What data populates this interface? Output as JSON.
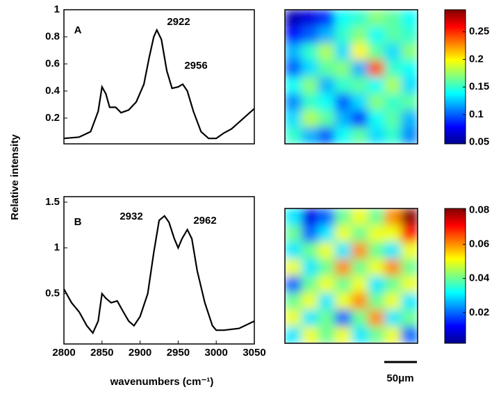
{
  "figure": {
    "ylabel": "Relative intensity",
    "xlabel": "wavenumbers (cm⁻¹)",
    "scale_bar_label": "50μm"
  },
  "chart_data": [
    {
      "type": "line",
      "color": "#000000",
      "annotations": [
        "A",
        "2922",
        "2956"
      ],
      "x": [
        2800,
        2820,
        2835,
        2845,
        2850,
        2855,
        2860,
        2868,
        2875,
        2885,
        2895,
        2905,
        2912,
        2918,
        2922,
        2928,
        2935,
        2942,
        2950,
        2956,
        2962,
        2970,
        2980,
        2990,
        3000,
        3010,
        3020,
        3030,
        3040,
        3050
      ],
      "values": [
        0.05,
        0.06,
        0.1,
        0.25,
        0.43,
        0.38,
        0.28,
        0.28,
        0.24,
        0.26,
        0.32,
        0.45,
        0.65,
        0.8,
        0.85,
        0.78,
        0.55,
        0.42,
        0.43,
        0.45,
        0.4,
        0.25,
        0.1,
        0.05,
        0.05,
        0.09,
        0.12,
        0.17,
        0.22,
        0.27
      ],
      "xlim": [
        2800,
        3050
      ],
      "ylim": [
        0.01,
        1
      ],
      "yticks": [
        0.2,
        0.4,
        0.6,
        0.8,
        1
      ]
    },
    {
      "type": "heatmap",
      "colormap": "jet",
      "clim": [
        0.047,
        0.29
      ],
      "cticks": [
        0.05,
        0.1,
        0.15,
        0.2,
        0.25
      ],
      "z": [
        [
          0.06,
          0.07,
          0.09,
          0.14,
          0.15,
          0.17,
          0.16,
          0.14
        ],
        [
          0.08,
          0.1,
          0.12,
          0.15,
          0.17,
          0.14,
          0.16,
          0.15
        ],
        [
          0.12,
          0.15,
          0.18,
          0.13,
          0.2,
          0.16,
          0.13,
          0.17
        ],
        [
          0.1,
          0.13,
          0.16,
          0.17,
          0.12,
          0.24,
          0.15,
          0.14
        ],
        [
          0.14,
          0.17,
          0.12,
          0.15,
          0.16,
          0.14,
          0.18,
          0.13
        ],
        [
          0.11,
          0.15,
          0.14,
          0.1,
          0.13,
          0.17,
          0.15,
          0.16
        ],
        [
          0.13,
          0.18,
          0.16,
          0.12,
          0.09,
          0.14,
          0.16,
          0.12
        ],
        [
          0.15,
          0.12,
          0.1,
          0.14,
          0.16,
          0.13,
          0.15,
          0.11
        ]
      ]
    },
    {
      "type": "line",
      "color": "#000000",
      "annotations": [
        "B",
        "2932",
        "2962"
      ],
      "x": [
        2800,
        2810,
        2820,
        2830,
        2838,
        2845,
        2850,
        2855,
        2862,
        2870,
        2878,
        2885,
        2892,
        2900,
        2910,
        2918,
        2925,
        2932,
        2938,
        2945,
        2950,
        2955,
        2962,
        2968,
        2975,
        2985,
        2995,
        3000,
        3010,
        3030,
        3050
      ],
      "values": [
        0.55,
        0.4,
        0.3,
        0.15,
        0.07,
        0.2,
        0.5,
        0.45,
        0.4,
        0.42,
        0.3,
        0.2,
        0.15,
        0.25,
        0.5,
        0.95,
        1.3,
        1.35,
        1.28,
        1.1,
        1.0,
        1.1,
        1.2,
        1.1,
        0.75,
        0.4,
        0.15,
        0.1,
        0.1,
        0.12,
        0.2
      ],
      "xlim": [
        2800,
        3050
      ],
      "xticks": [
        2800,
        2850,
        2900,
        2950,
        3000,
        3050
      ],
      "ylim": [
        -0.05,
        1.56
      ],
      "yticks": [
        0.5,
        1,
        1.5
      ]
    },
    {
      "type": "heatmap",
      "colormap": "jet",
      "clim": [
        0.002,
        0.081
      ],
      "cticks": [
        0.02,
        0.04,
        0.06,
        0.08
      ],
      "z": [
        [
          0.03,
          0.01,
          0.02,
          0.04,
          0.05,
          0.04,
          0.06,
          0.08
        ],
        [
          0.04,
          0.02,
          0.03,
          0.05,
          0.04,
          0.05,
          0.05,
          0.07
        ],
        [
          0.03,
          0.04,
          0.05,
          0.03,
          0.06,
          0.04,
          0.03,
          0.05
        ],
        [
          0.05,
          0.03,
          0.04,
          0.06,
          0.04,
          0.05,
          0.06,
          0.04
        ],
        [
          0.02,
          0.04,
          0.05,
          0.04,
          0.05,
          0.03,
          0.04,
          0.05
        ],
        [
          0.04,
          0.05,
          0.03,
          0.05,
          0.06,
          0.04,
          0.05,
          0.03
        ],
        [
          0.05,
          0.03,
          0.04,
          0.02,
          0.04,
          0.06,
          0.03,
          0.04
        ],
        [
          0.03,
          0.05,
          0.04,
          0.05,
          0.03,
          0.04,
          0.05,
          0.02
        ]
      ]
    }
  ]
}
